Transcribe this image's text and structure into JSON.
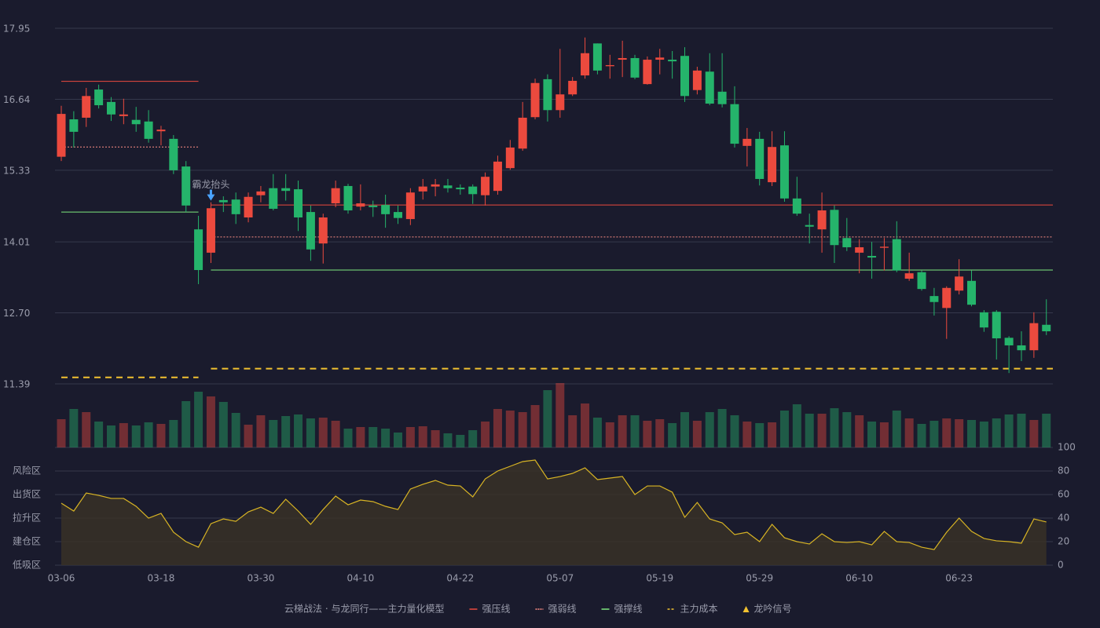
{
  "chart_data": {
    "type": "candlestick",
    "categories": [
      "03-06",
      null,
      null,
      null,
      null,
      null,
      null,
      null,
      "03-18",
      null,
      null,
      null,
      null,
      null,
      null,
      null,
      "03-30",
      null,
      null,
      null,
      null,
      null,
      null,
      null,
      "04-10",
      null,
      null,
      null,
      null,
      null,
      null,
      null,
      "04-22",
      null,
      null,
      null,
      null,
      null,
      null,
      null,
      "05-07",
      null,
      null,
      null,
      null,
      null,
      null,
      null,
      "05-19",
      null,
      null,
      null,
      null,
      null,
      null,
      null,
      "05-29",
      null,
      null,
      null,
      null,
      null,
      null,
      null,
      "06-10",
      null,
      null,
      null,
      null,
      null,
      null,
      null,
      "06-23",
      null,
      null,
      null,
      null,
      null,
      null,
      null
    ],
    "open": [
      15.58,
      16.27,
      16.3,
      16.82,
      16.59,
      16.33,
      16.26,
      16.23,
      16.05,
      15.91,
      15.4,
      14.24,
      13.81,
      14.78,
      14.79,
      14.46,
      14.87,
      15.0,
      15.0,
      14.98,
      14.56,
      13.98,
      14.72,
      15.04,
      14.66,
      14.68,
      14.69,
      14.56,
      14.43,
      14.94,
      15.03,
      15.05,
      15.01,
      15.03,
      14.87,
      14.95,
      15.37,
      15.73,
      16.31,
      17.01,
      16.44,
      16.73,
      17.08,
      17.67,
      17.25,
      17.37,
      17.4,
      16.92,
      17.37,
      17.37,
      17.44,
      16.81,
      17.15,
      16.78,
      16.55,
      15.78,
      15.91,
      15.11,
      15.79,
      14.81,
      14.32,
      14.24,
      14.6,
      14.08,
      13.81,
      13.75,
      13.9,
      14.06,
      13.33,
      13.45,
      13.01,
      12.79,
      13.11,
      13.29,
      12.71,
      12.72,
      12.24,
      12.1,
      12.01,
      12.48
    ],
    "high": [
      16.52,
      16.42,
      16.85,
      16.91,
      16.68,
      16.65,
      16.5,
      16.44,
      16.15,
      15.98,
      15.5,
      14.49,
      14.74,
      14.85,
      14.92,
      14.92,
      15.04,
      15.26,
      15.26,
      15.14,
      14.68,
      14.53,
      15.14,
      15.08,
      15.07,
      14.77,
      14.88,
      14.68,
      15.0,
      15.17,
      15.17,
      15.17,
      15.07,
      15.07,
      15.29,
      15.6,
      15.89,
      16.59,
      17.02,
      17.1,
      17.57,
      17.05,
      17.78,
      17.67,
      17.46,
      17.72,
      17.46,
      17.43,
      17.57,
      17.53,
      17.6,
      17.24,
      17.49,
      17.49,
      16.88,
      16.11,
      16.04,
      16.05,
      16.05,
      15.21,
      14.53,
      14.92,
      14.68,
      14.45,
      14.06,
      14.01,
      14.08,
      14.39,
      13.81,
      13.48,
      13.16,
      13.19,
      13.69,
      13.48,
      12.75,
      12.75,
      12.27,
      12.36,
      12.71,
      12.95
    ],
    "low": [
      15.5,
      15.75,
      16.13,
      16.47,
      16.24,
      16.18,
      16.04,
      15.84,
      15.79,
      15.26,
      14.56,
      13.23,
      13.62,
      14.56,
      14.34,
      14.37,
      14.74,
      14.59,
      14.77,
      14.21,
      13.66,
      13.61,
      14.65,
      14.53,
      14.59,
      14.47,
      14.27,
      14.34,
      14.32,
      14.79,
      14.85,
      14.92,
      14.88,
      14.71,
      14.68,
      14.88,
      15.34,
      15.69,
      16.27,
      16.23,
      16.3,
      16.7,
      17.02,
      17.1,
      17.02,
      17.05,
      17.01,
      16.91,
      17.1,
      17.02,
      16.59,
      16.73,
      16.53,
      16.49,
      15.75,
      15.4,
      15.05,
      15.04,
      14.75,
      14.49,
      13.98,
      13.81,
      13.62,
      13.84,
      13.43,
      13.33,
      13.48,
      13.45,
      13.29,
      13.11,
      12.65,
      12.22,
      13.04,
      12.82,
      12.35,
      11.84,
      11.59,
      11.81,
      11.87,
      12.29
    ],
    "close": [
      16.37,
      16.04,
      16.7,
      16.53,
      16.36,
      16.36,
      16.18,
      15.91,
      16.08,
      15.33,
      14.68,
      13.49,
      14.63,
      14.74,
      14.52,
      14.84,
      14.94,
      14.62,
      14.95,
      14.46,
      13.87,
      14.46,
      15.0,
      14.59,
      14.72,
      14.65,
      14.52,
      14.45,
      14.92,
      15.03,
      15.07,
      15.0,
      14.98,
      14.89,
      15.21,
      15.49,
      15.75,
      16.3,
      16.94,
      16.44,
      16.73,
      16.98,
      17.49,
      17.17,
      17.27,
      17.4,
      17.04,
      17.37,
      17.41,
      17.34,
      16.7,
      17.17,
      16.56,
      16.55,
      15.82,
      15.91,
      15.17,
      15.76,
      14.81,
      14.53,
      14.29,
      14.59,
      13.95,
      13.91,
      13.91,
      13.72,
      13.92,
      13.48,
      13.43,
      13.14,
      12.9,
      13.16,
      13.37,
      12.85,
      12.43,
      12.23,
      12.1,
      12.01,
      12.51,
      12.36
    ],
    "up_color": "#ec4a3e",
    "down_color": "#25b46b",
    "ylim": [
      11.39,
      17.95
    ],
    "yticks": [
      11.39,
      {
        "value": 12.7,
        "label": "12.70"
      },
      14.01,
      15.33,
      16.64,
      17.95
    ],
    "grid": true,
    "lines": [
      {
        "name": "强压线",
        "color": "#ec4a3e",
        "style": "solid",
        "segments": [
          {
            "start": 0,
            "end": 11,
            "value": 16.97
          },
          {
            "start": 12,
            "end": 79,
            "value": 14.69
          }
        ]
      },
      {
        "name": "强弱线",
        "color": "#ff8f86",
        "style": "dotted",
        "segments": [
          {
            "start": 0,
            "end": 11,
            "value": 15.76
          },
          {
            "start": 12,
            "end": 79,
            "value": 14.1
          }
        ]
      },
      {
        "name": "强撑线",
        "color": "#7ee87e",
        "style": "solid",
        "segments": [
          {
            "start": 0,
            "end": 11,
            "value": 14.56
          },
          {
            "start": 12,
            "end": 79,
            "value": 13.49
          }
        ]
      },
      {
        "name": "主力成本",
        "color": "#f2c230",
        "style": "dashed",
        "segments": [
          {
            "start": 0,
            "end": 11,
            "value": 11.51
          },
          {
            "start": 12,
            "end": 79,
            "value": 11.67
          }
        ]
      }
    ],
    "signals": [
      {
        "index": 12,
        "label": "霸龙抬头"
      }
    ],
    "signal_color": "#4aa3ff",
    "volume": {
      "values": [
        36,
        49,
        45,
        33,
        28,
        31,
        28,
        32,
        30,
        35,
        59,
        71,
        65,
        58,
        44,
        29,
        41,
        35,
        40,
        42,
        37,
        38,
        34,
        24,
        26,
        26,
        24,
        19,
        26,
        27,
        22,
        18,
        16,
        22,
        33,
        49,
        47,
        45,
        54,
        73,
        82,
        41,
        56,
        38,
        32,
        41,
        41,
        34,
        36,
        31,
        45,
        34,
        45,
        49,
        41,
        33,
        31,
        32,
        47,
        55,
        43,
        43,
        50,
        45,
        41,
        33,
        32,
        47,
        37,
        30,
        34,
        37,
        36,
        35,
        33,
        37,
        42,
        43,
        35,
        43
      ],
      "ylim": [
        0,
        82
      ]
    },
    "indicator": {
      "values": [
        52.7,
        46,
        61.3,
        59.3,
        56.7,
        56.7,
        50,
        40,
        44,
        28,
        20,
        15.3,
        35.3,
        39.3,
        37.3,
        45.3,
        49.3,
        44,
        56,
        46,
        34.7,
        47.3,
        58.7,
        51.3,
        55.3,
        54,
        50,
        47.3,
        64.7,
        68.7,
        72,
        68,
        67.3,
        58,
        73.3,
        80,
        84,
        88,
        89.3,
        73.3,
        75.3,
        78,
        82.7,
        72.7,
        74,
        75.3,
        60,
        67.3,
        67.3,
        62,
        40.7,
        53.3,
        39.3,
        36,
        26,
        28,
        20,
        34.7,
        23.3,
        20,
        18,
        26.7,
        20,
        19.3,
        20,
        17.3,
        28.7,
        20,
        19.3,
        15.3,
        13.3,
        28,
        40,
        28.7,
        22.7,
        20.7,
        20,
        18.7,
        39.3,
        36.7
      ],
      "color": "#d8b424",
      "ylim": [
        0,
        100
      ],
      "yticks": [
        0,
        20,
        40,
        60,
        80,
        100
      ],
      "tick_colors": [
        "#ec4a3e",
        "#e8a23c",
        "#4f8fe0",
        "#d946d9",
        "#e8a23c",
        "#4cd964"
      ],
      "zones": [
        {
          "label": "低吸区",
          "value": 0,
          "color": "#ec4a3e"
        },
        {
          "label": "建仓区",
          "value": 20,
          "color": "#ec4a3e"
        },
        {
          "label": "拉升区",
          "value": 40,
          "color": "#4f8fe0"
        },
        {
          "label": "出货区",
          "value": 60,
          "color": "#d946d9"
        },
        {
          "label": "风险区",
          "value": 80,
          "color": "#e8a23c"
        }
      ]
    },
    "legend_title": "云梯战法 · 与龙同行——主力量化模型",
    "legend_title_color": "#e8b34a",
    "signal_legend": {
      "name": "龙吟信号",
      "color": "#f2c230"
    }
  }
}
